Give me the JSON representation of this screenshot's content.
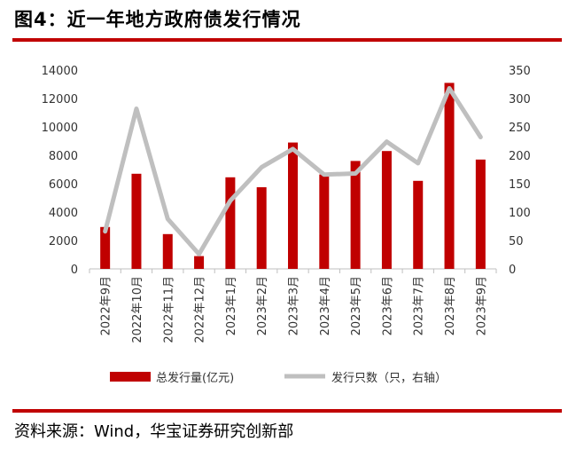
{
  "header": {
    "title": "图4：近一年地方政府债发行情况"
  },
  "footer": {
    "source": "资料来源：Wind，华宝证券研究创新部"
  },
  "chart_data": {
    "type": "bar",
    "categories": [
      "2022年9月",
      "2022年10月",
      "2022年11月",
      "2022年12月",
      "2023年1月",
      "2023年2月",
      "2023年3月",
      "2023年4月",
      "2023年5月",
      "2023年6月",
      "2023年7月",
      "2023年8月",
      "2023年9月"
    ],
    "series": [
      {
        "name": "总发行量(亿元)",
        "type": "bar",
        "axis": "left",
        "color": "#c00000",
        "values": [
          2950,
          6700,
          2450,
          900,
          6450,
          5750,
          8900,
          6650,
          7600,
          8300,
          6200,
          13100,
          7700
        ]
      },
      {
        "name": "发行只数（只，右轴）",
        "type": "line",
        "axis": "right",
        "color": "#bfbfbf",
        "values": [
          66,
          282,
          88,
          26,
          120,
          179,
          211,
          166,
          168,
          224,
          186,
          318,
          232
        ]
      }
    ],
    "y_left": {
      "min": 0,
      "max": 14000,
      "ticks": [
        "0",
        "2000",
        "4000",
        "6000",
        "8000",
        "10000",
        "12000",
        "14000"
      ]
    },
    "y_right": {
      "min": 0,
      "max": 350,
      "ticks": [
        "0",
        "50",
        "100",
        "150",
        "200",
        "250",
        "300",
        "350"
      ]
    },
    "grid": false,
    "legend_position": "bottom"
  }
}
